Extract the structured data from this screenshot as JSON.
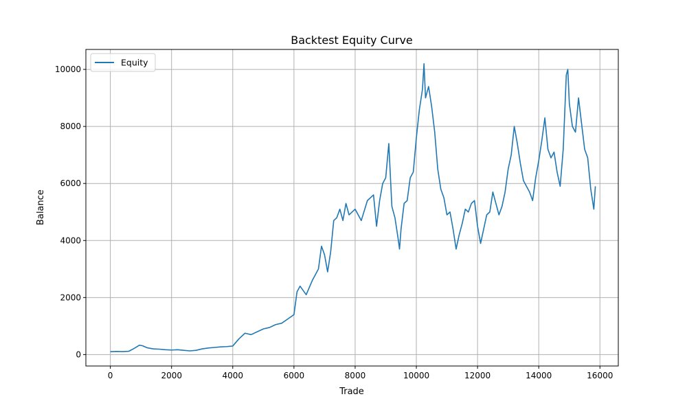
{
  "chart_data": {
    "type": "line",
    "title": "Backtest Equity Curve",
    "xlabel": "Trade",
    "ylabel": "Balance",
    "xlim": [
      -800,
      16600
    ],
    "ylim": [
      -400,
      10700
    ],
    "xticks": [
      0,
      2000,
      4000,
      6000,
      8000,
      10000,
      12000,
      14000,
      16000
    ],
    "yticks": [
      0,
      2000,
      4000,
      6000,
      8000,
      10000
    ],
    "grid": true,
    "legend": {
      "placement": "top-left"
    },
    "series": [
      {
        "name": "Equity",
        "color": "#1f77b4",
        "points": [
          [
            0,
            100
          ],
          [
            200,
            110
          ],
          [
            400,
            105
          ],
          [
            600,
            115
          ],
          [
            800,
            230
          ],
          [
            950,
            330
          ],
          [
            1050,
            310
          ],
          [
            1200,
            240
          ],
          [
            1400,
            200
          ],
          [
            1600,
            190
          ],
          [
            1800,
            170
          ],
          [
            2000,
            160
          ],
          [
            2200,
            170
          ],
          [
            2400,
            150
          ],
          [
            2600,
            130
          ],
          [
            2800,
            150
          ],
          [
            3000,
            200
          ],
          [
            3200,
            230
          ],
          [
            3400,
            250
          ],
          [
            3600,
            270
          ],
          [
            3800,
            280
          ],
          [
            4000,
            300
          ],
          [
            4200,
            550
          ],
          [
            4400,
            750
          ],
          [
            4600,
            700
          ],
          [
            4800,
            800
          ],
          [
            5000,
            900
          ],
          [
            5200,
            950
          ],
          [
            5400,
            1050
          ],
          [
            5600,
            1100
          ],
          [
            5800,
            1250
          ],
          [
            6000,
            1400
          ],
          [
            6100,
            2200
          ],
          [
            6200,
            2400
          ],
          [
            6400,
            2100
          ],
          [
            6600,
            2600
          ],
          [
            6800,
            3000
          ],
          [
            6900,
            3800
          ],
          [
            7000,
            3500
          ],
          [
            7100,
            2900
          ],
          [
            7200,
            3600
          ],
          [
            7300,
            4700
          ],
          [
            7400,
            4800
          ],
          [
            7500,
            5100
          ],
          [
            7600,
            4700
          ],
          [
            7700,
            5300
          ],
          [
            7800,
            4900
          ],
          [
            8000,
            5100
          ],
          [
            8200,
            4700
          ],
          [
            8400,
            5400
          ],
          [
            8600,
            5600
          ],
          [
            8700,
            4500
          ],
          [
            8800,
            5400
          ],
          [
            8900,
            6000
          ],
          [
            9000,
            6200
          ],
          [
            9100,
            7400
          ],
          [
            9200,
            5200
          ],
          [
            9300,
            4800
          ],
          [
            9400,
            4100
          ],
          [
            9450,
            3700
          ],
          [
            9500,
            4400
          ],
          [
            9600,
            5300
          ],
          [
            9700,
            5400
          ],
          [
            9800,
            6200
          ],
          [
            9900,
            6400
          ],
          [
            10000,
            7600
          ],
          [
            10100,
            8600
          ],
          [
            10200,
            9300
          ],
          [
            10250,
            10200
          ],
          [
            10300,
            9000
          ],
          [
            10400,
            9400
          ],
          [
            10500,
            8700
          ],
          [
            10600,
            7800
          ],
          [
            10700,
            6500
          ],
          [
            10800,
            5800
          ],
          [
            10900,
            5500
          ],
          [
            11000,
            4900
          ],
          [
            11100,
            5000
          ],
          [
            11200,
            4400
          ],
          [
            11300,
            3700
          ],
          [
            11400,
            4200
          ],
          [
            11500,
            4600
          ],
          [
            11600,
            5100
          ],
          [
            11700,
            5000
          ],
          [
            11800,
            5300
          ],
          [
            11900,
            5400
          ],
          [
            12000,
            4500
          ],
          [
            12100,
            3900
          ],
          [
            12200,
            4400
          ],
          [
            12300,
            4900
          ],
          [
            12400,
            5000
          ],
          [
            12500,
            5700
          ],
          [
            12600,
            5300
          ],
          [
            12700,
            4900
          ],
          [
            12800,
            5200
          ],
          [
            12900,
            5700
          ],
          [
            13000,
            6500
          ],
          [
            13100,
            7000
          ],
          [
            13200,
            8000
          ],
          [
            13300,
            7400
          ],
          [
            13400,
            6700
          ],
          [
            13500,
            6100
          ],
          [
            13600,
            5900
          ],
          [
            13700,
            5700
          ],
          [
            13800,
            5400
          ],
          [
            13900,
            6200
          ],
          [
            14000,
            6800
          ],
          [
            14100,
            7500
          ],
          [
            14200,
            8300
          ],
          [
            14300,
            7200
          ],
          [
            14400,
            6900
          ],
          [
            14500,
            7100
          ],
          [
            14600,
            6400
          ],
          [
            14700,
            5900
          ],
          [
            14800,
            7200
          ],
          [
            14900,
            9800
          ],
          [
            14950,
            10000
          ],
          [
            15000,
            8800
          ],
          [
            15100,
            8000
          ],
          [
            15200,
            7800
          ],
          [
            15300,
            9000
          ],
          [
            15400,
            8100
          ],
          [
            15500,
            7200
          ],
          [
            15600,
            6900
          ],
          [
            15700,
            5800
          ],
          [
            15800,
            5100
          ],
          [
            15850,
            5900
          ]
        ]
      }
    ]
  }
}
